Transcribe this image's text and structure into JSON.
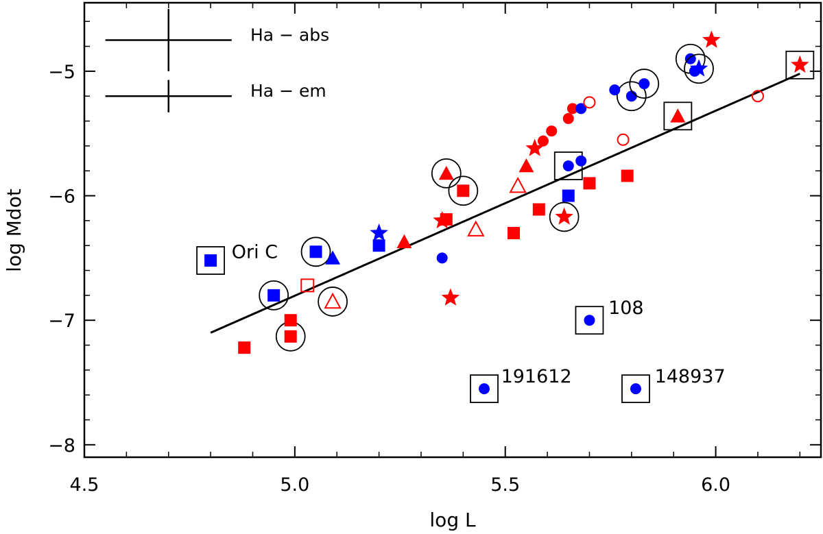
{
  "chart_data": {
    "type": "scatter",
    "title": "",
    "xlabel": "log L",
    "ylabel": "log Mdot",
    "xlim": [
      4.5,
      6.25
    ],
    "ylim": [
      -8.1,
      -4.45
    ],
    "xticks": [
      4.5,
      5.0,
      5.5,
      6.0
    ],
    "xtick_labels": [
      "4.5",
      "5.0",
      "5.5",
      "6.0"
    ],
    "yticks": [
      -8,
      -7,
      -6,
      -5
    ],
    "ytick_labels": [
      "−8",
      "−7",
      "−6",
      "−5"
    ],
    "colors": {
      "red": "#ff0000",
      "blue": "#0000ff",
      "black": "#000000"
    },
    "fit_line": {
      "x": [
        4.8,
        6.2
      ],
      "y": [
        -7.1,
        -5.02
      ]
    },
    "legend": [
      {
        "label": "Ha − abs",
        "errorbar_x": 4.7,
        "errorbar_y": -4.75,
        "half_width": 0.15,
        "half_height": 0.25
      },
      {
        "label": "Ha − em",
        "errorbar_x": 4.7,
        "errorbar_y": -5.2,
        "half_width": 0.15,
        "half_height": 0.13
      }
    ],
    "points": [
      {
        "x": 4.95,
        "y": -6.8,
        "marker": "square",
        "color": "blue",
        "filled": true,
        "ring": "circle"
      },
      {
        "x": 5.05,
        "y": -6.45,
        "marker": "square",
        "color": "blue",
        "filled": true,
        "ring": "circle"
      },
      {
        "x": 4.99,
        "y": -7.13,
        "marker": "square",
        "color": "red",
        "filled": true,
        "ring": "circle"
      },
      {
        "x": 5.09,
        "y": -6.85,
        "marker": "triangle",
        "color": "red",
        "filled": false,
        "ring": "circle"
      },
      {
        "x": 5.36,
        "y": -5.82,
        "marker": "triangle",
        "color": "red",
        "filled": true,
        "ring": "circle"
      },
      {
        "x": 5.4,
        "y": -5.96,
        "marker": "square",
        "color": "red",
        "filled": true,
        "ring": "circle"
      },
      {
        "x": 5.64,
        "y": -6.17,
        "marker": "star",
        "color": "red",
        "filled": true,
        "ring": "circle"
      },
      {
        "x": 5.8,
        "y": -5.2,
        "marker": "circle",
        "color": "blue",
        "filled": true,
        "ring": "circle"
      },
      {
        "x": 5.83,
        "y": -5.1,
        "marker": "circle",
        "color": "blue",
        "filled": true,
        "ring": "circle"
      },
      {
        "x": 5.94,
        "y": -4.9,
        "marker": "circle",
        "color": "blue",
        "filled": true,
        "ring": "circle"
      },
      {
        "x": 5.96,
        "y": -4.98,
        "marker": "star",
        "color": "blue",
        "filled": true,
        "ring": "circle"
      },
      {
        "x": 4.8,
        "y": -6.52,
        "marker": "square",
        "color": "blue",
        "filled": true,
        "ring": "square"
      },
      {
        "x": 5.65,
        "y": -5.76,
        "marker": "circle",
        "color": "blue",
        "filled": true,
        "ring": "square"
      },
      {
        "x": 5.91,
        "y": -5.36,
        "marker": "triangle",
        "color": "red",
        "filled": true,
        "ring": "square"
      },
      {
        "x": 6.2,
        "y": -4.95,
        "marker": "star",
        "color": "red",
        "filled": true,
        "ring": "square"
      },
      {
        "x": 5.7,
        "y": -7.0,
        "marker": "circle",
        "color": "blue",
        "filled": true,
        "ring": "square"
      },
      {
        "x": 5.45,
        "y": -7.55,
        "marker": "circle",
        "color": "blue",
        "filled": true,
        "ring": "square"
      },
      {
        "x": 5.81,
        "y": -7.55,
        "marker": "circle",
        "color": "blue",
        "filled": true,
        "ring": "square"
      },
      {
        "x": 4.88,
        "y": -7.22,
        "marker": "square",
        "color": "red",
        "filled": true
      },
      {
        "x": 4.99,
        "y": -7.0,
        "marker": "square",
        "color": "red",
        "filled": true
      },
      {
        "x": 5.03,
        "y": -6.72,
        "marker": "square",
        "color": "red",
        "filled": false
      },
      {
        "x": 5.09,
        "y": -6.5,
        "marker": "triangle",
        "color": "blue",
        "filled": true
      },
      {
        "x": 5.2,
        "y": -6.3,
        "marker": "star",
        "color": "blue",
        "filled": true
      },
      {
        "x": 5.2,
        "y": -6.4,
        "marker": "square",
        "color": "blue",
        "filled": true
      },
      {
        "x": 5.26,
        "y": -6.37,
        "marker": "triangle",
        "color": "red",
        "filled": true
      },
      {
        "x": 5.35,
        "y": -6.5,
        "marker": "circle",
        "color": "blue",
        "filled": true
      },
      {
        "x": 5.35,
        "y": -6.2,
        "marker": "star",
        "color": "red",
        "filled": true
      },
      {
        "x": 5.36,
        "y": -6.19,
        "marker": "square",
        "color": "red",
        "filled": true
      },
      {
        "x": 5.37,
        "y": -6.82,
        "marker": "star",
        "color": "red",
        "filled": true
      },
      {
        "x": 5.43,
        "y": -6.27,
        "marker": "triangle",
        "color": "red",
        "filled": false
      },
      {
        "x": 5.52,
        "y": -6.3,
        "marker": "square",
        "color": "red",
        "filled": true
      },
      {
        "x": 5.53,
        "y": -5.92,
        "marker": "triangle",
        "color": "red",
        "filled": false
      },
      {
        "x": 5.55,
        "y": -5.76,
        "marker": "triangle",
        "color": "red",
        "filled": true
      },
      {
        "x": 5.57,
        "y": -5.62,
        "marker": "star",
        "color": "red",
        "filled": true
      },
      {
        "x": 5.58,
        "y": -6.11,
        "marker": "square",
        "color": "red",
        "filled": true
      },
      {
        "x": 5.59,
        "y": -5.56,
        "marker": "circle",
        "color": "red",
        "filled": true
      },
      {
        "x": 5.61,
        "y": -5.48,
        "marker": "circle",
        "color": "red",
        "filled": true
      },
      {
        "x": 5.65,
        "y": -6.0,
        "marker": "square",
        "color": "blue",
        "filled": true
      },
      {
        "x": 5.65,
        "y": -5.38,
        "marker": "circle",
        "color": "red",
        "filled": true
      },
      {
        "x": 5.66,
        "y": -5.3,
        "marker": "circle",
        "color": "red",
        "filled": true
      },
      {
        "x": 5.68,
        "y": -5.3,
        "marker": "circle",
        "color": "blue",
        "filled": true
      },
      {
        "x": 5.68,
        "y": -5.72,
        "marker": "circle",
        "color": "blue",
        "filled": true
      },
      {
        "x": 5.7,
        "y": -5.25,
        "marker": "circle",
        "color": "red",
        "filled": false
      },
      {
        "x": 5.7,
        "y": -5.9,
        "marker": "square",
        "color": "red",
        "filled": true
      },
      {
        "x": 5.76,
        "y": -5.15,
        "marker": "circle",
        "color": "blue",
        "filled": true
      },
      {
        "x": 5.78,
        "y": -5.55,
        "marker": "circle",
        "color": "red",
        "filled": false
      },
      {
        "x": 5.79,
        "y": -5.84,
        "marker": "square",
        "color": "red",
        "filled": true
      },
      {
        "x": 5.95,
        "y": -5.0,
        "marker": "circle",
        "color": "blue",
        "filled": true
      },
      {
        "x": 5.99,
        "y": -4.75,
        "marker": "star",
        "color": "red",
        "filled": true
      },
      {
        "x": 6.1,
        "y": -5.2,
        "marker": "circle",
        "color": "red",
        "filled": false
      }
    ],
    "annotations": [
      {
        "text": "Ori C",
        "x": 4.85,
        "y": -6.5
      },
      {
        "text": "108",
        "x": 5.745,
        "y": -6.95
      },
      {
        "text": "191612",
        "x": 5.49,
        "y": -7.5
      },
      {
        "text": "148937",
        "x": 5.855,
        "y": -7.5
      }
    ]
  }
}
